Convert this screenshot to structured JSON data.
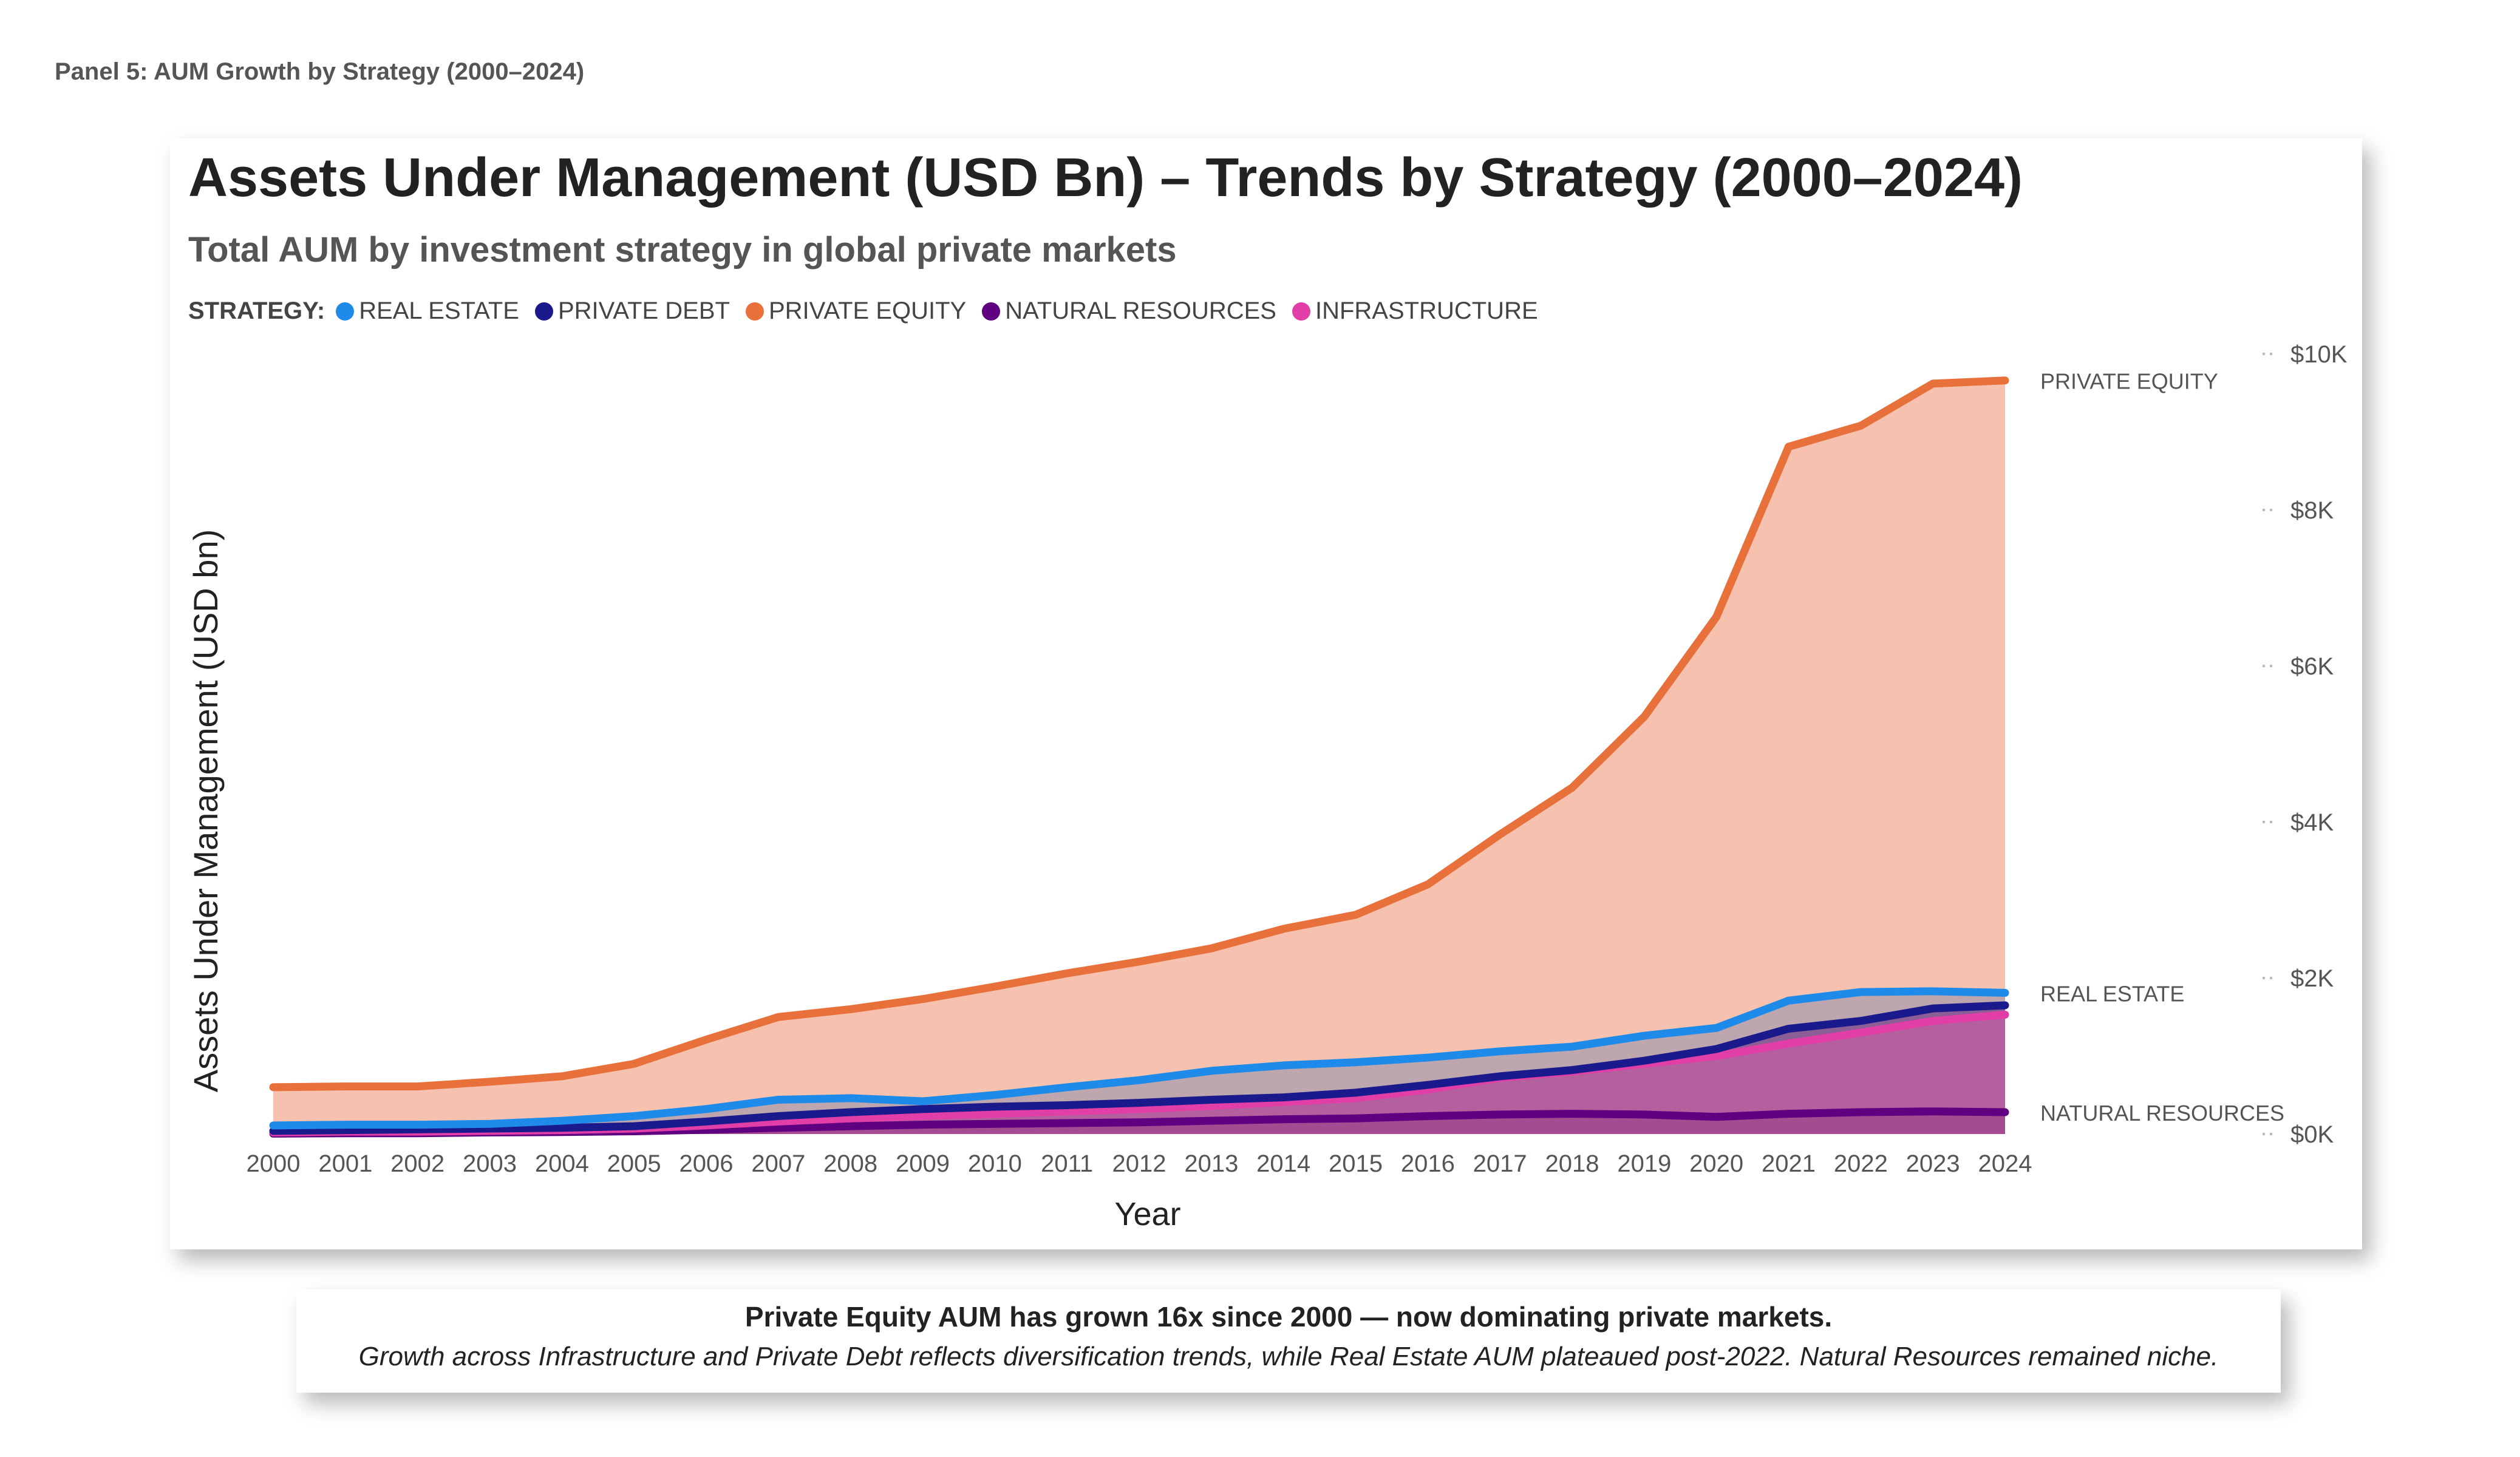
{
  "panel_label": "Panel 5: AUM Growth by Strategy (2000–2024)",
  "callout": {
    "headline": "Private Equity AUM has grown 16x since 2000 — now dominating private markets.",
    "body": "Growth across Infrastructure and Private Debt reflects diversification trends, while Real Estate AUM plateaued post-2022. Natural Resources remained niche."
  },
  "chart_data": {
    "type": "area",
    "title": "Assets Under Management (USD Bn) – Trends by Strategy (2000–2024)",
    "subtitle": "Total AUM by investment strategy in global private markets",
    "legend_title": "STRATEGY:",
    "legend_position": "top-left",
    "xlabel": "Year",
    "ylabel": "Assets Under Management (USD bn)",
    "ylim": [
      0,
      10000
    ],
    "y_ticks": [
      0,
      2000,
      4000,
      6000,
      8000,
      10000
    ],
    "y_tick_labels": [
      "$0K",
      "$2K",
      "$4K",
      "$6K",
      "$8K",
      "$10K"
    ],
    "y_axis_side": "right",
    "grid": false,
    "x": [
      "2000",
      "2001",
      "2002",
      "2003",
      "2004",
      "2005",
      "2006",
      "2007",
      "2008",
      "2009",
      "2010",
      "2011",
      "2012",
      "2013",
      "2014",
      "2015",
      "2016",
      "2017",
      "2018",
      "2019",
      "2020",
      "2021",
      "2022",
      "2023",
      "2024"
    ],
    "series": [
      {
        "name": "PRIVATE EQUITY",
        "color": "#E8703A",
        "fill": "#F6C2AF",
        "values": [
          600,
          610,
          610,
          670,
          740,
          900,
          1210,
          1500,
          1600,
          1730,
          1890,
          2060,
          2210,
          2380,
          2630,
          2810,
          3200,
          3840,
          4440,
          5350,
          6630,
          8810,
          9080,
          9620,
          9660
        ]
      },
      {
        "name": "REAL ESTATE",
        "color": "#1E8BEB",
        "fill": "#BDA6AD",
        "values": [
          110,
          120,
          120,
          130,
          170,
          230,
          320,
          440,
          460,
          420,
          500,
          600,
          690,
          810,
          880,
          920,
          980,
          1060,
          1120,
          1260,
          1360,
          1710,
          1820,
          1830,
          1810
        ]
      },
      {
        "name": "PRIVATE DEBT",
        "color": "#1A1A8C",
        "fill": "#8B5E95",
        "values": [
          40,
          50,
          60,
          70,
          80,
          100,
          160,
          230,
          280,
          320,
          350,
          370,
          400,
          440,
          470,
          530,
          630,
          740,
          820,
          940,
          1090,
          1350,
          1450,
          1610,
          1650
        ]
      },
      {
        "name": "INFRASTRUCTURE",
        "color": "#E23EA8",
        "fill": "#B4609F",
        "values": [
          20,
          30,
          30,
          40,
          50,
          70,
          110,
          160,
          200,
          230,
          260,
          290,
          320,
          360,
          410,
          460,
          570,
          720,
          800,
          900,
          1000,
          1160,
          1300,
          1450,
          1530
        ]
      },
      {
        "name": "NATURAL RESOURCES",
        "color": "#5E0080",
        "fill": "#A34C92",
        "values": [
          5,
          10,
          10,
          20,
          25,
          35,
          55,
          80,
          100,
          120,
          130,
          140,
          150,
          170,
          190,
          200,
          230,
          250,
          260,
          250,
          220,
          260,
          280,
          290,
          280
        ]
      }
    ],
    "legend_order": [
      "REAL ESTATE",
      "PRIVATE DEBT",
      "PRIVATE EQUITY",
      "NATURAL RESOURCES",
      "INFRASTRUCTURE"
    ],
    "end_labels": [
      "PRIVATE EQUITY",
      "REAL ESTATE",
      "NATURAL RESOURCES"
    ]
  }
}
